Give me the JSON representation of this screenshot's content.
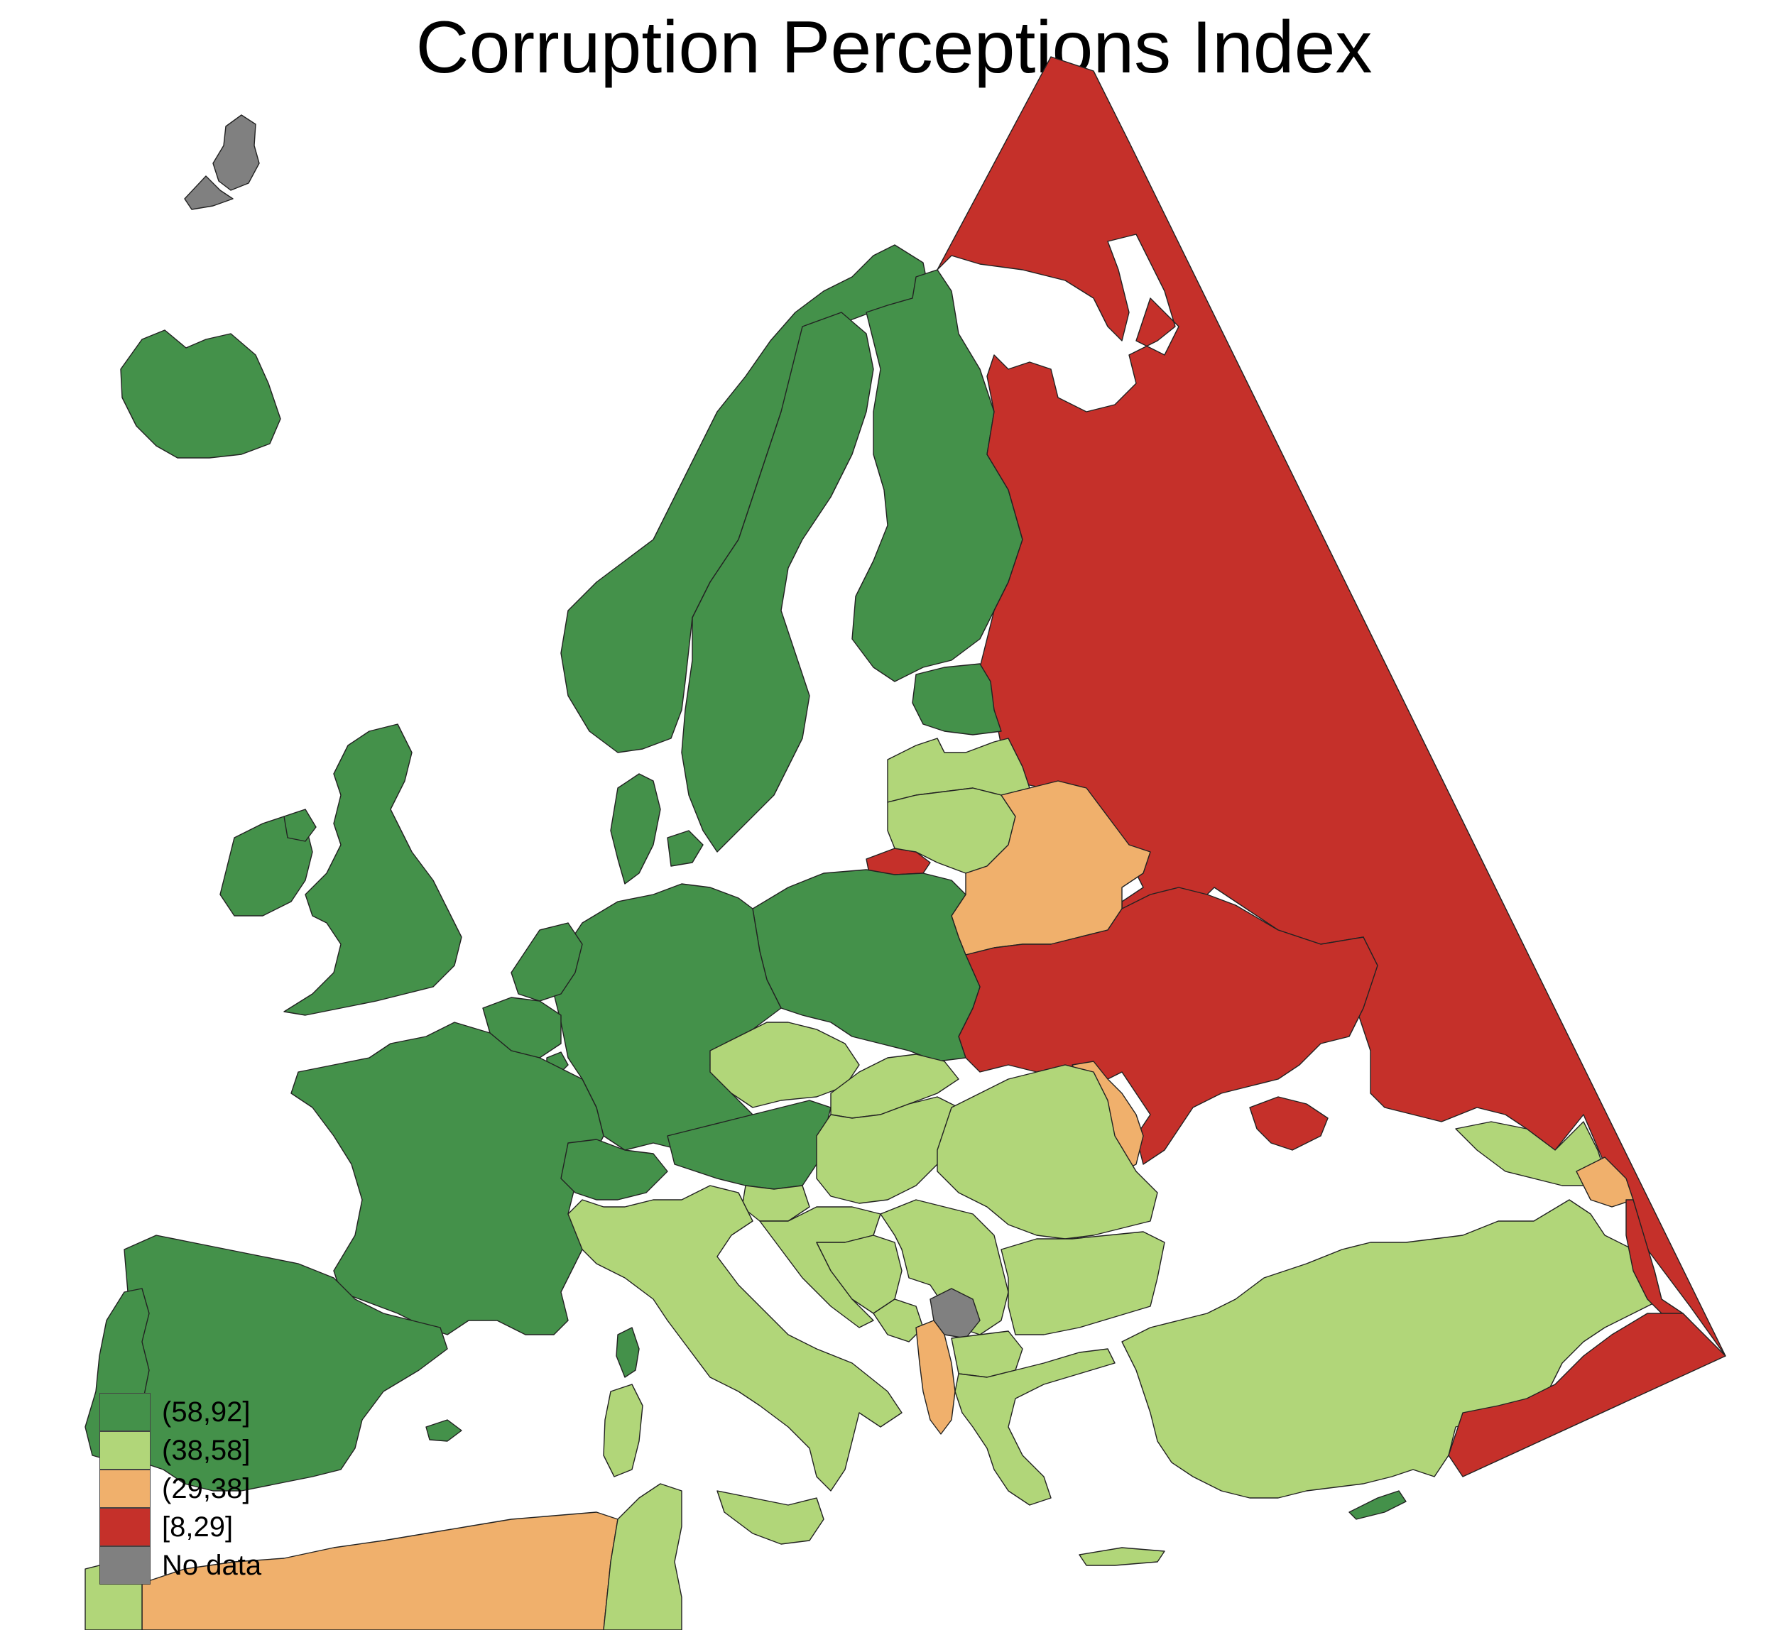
{
  "title": "Corruption Perceptions Index",
  "colors": {
    "c58_92": "#44914a",
    "c38_58": "#b1d679",
    "c29_38": "#f0b06c",
    "c8_29": "#c5302a",
    "no_data": "#808080",
    "border": "#222222"
  },
  "legend": [
    {
      "label": "(58,92]",
      "color": "#44914a"
    },
    {
      "label": "(38,58]",
      "color": "#b1d679"
    },
    {
      "label": "(29,38]",
      "color": "#f0b06c"
    },
    {
      "label": "[8,29]",
      "color": "#c5302a"
    },
    {
      "label": "No data",
      "color": "#808080"
    }
  ]
}
